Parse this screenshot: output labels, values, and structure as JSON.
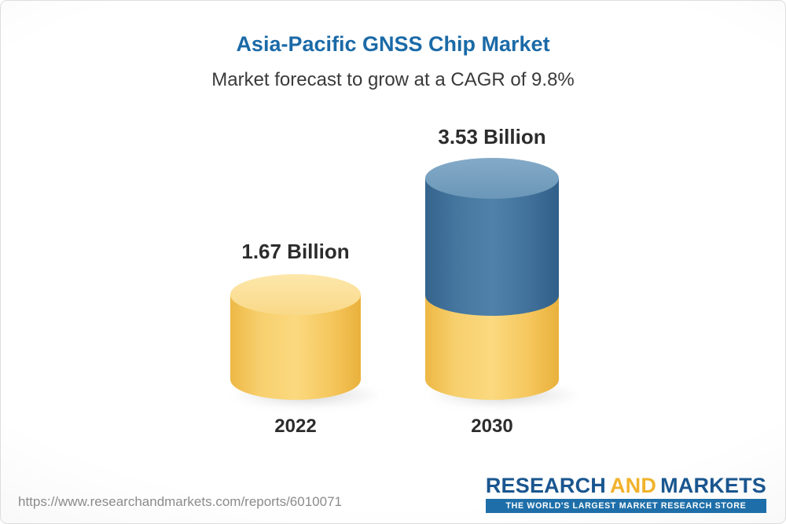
{
  "header": {
    "title": "Asia-Pacific GNSS Chip Market",
    "subtitle": "Market forecast to grow at a CAGR of 9.8%"
  },
  "chart_data": {
    "type": "bar",
    "title": "Asia-Pacific GNSS Chip Market",
    "subtitle": "Market forecast to grow at a CAGR of 9.8%",
    "cagr_percent": 9.8,
    "unit": "Billion",
    "categories": [
      "2022",
      "2030"
    ],
    "values": [
      1.67,
      3.53
    ],
    "value_labels": [
      "1.67 Billion",
      "3.53 Billion"
    ],
    "series_note": "2030 bar drawn stacked: bottom segment equals 2022 value (1.67), top blue segment is growth (1.86)",
    "colors": {
      "bar_2022": "#f6ca60",
      "bar_2030_bottom": "#f6ca60",
      "bar_2030_top": "#44759f",
      "title_text": "#1b6aa7",
      "label_text": "#2c2c2c"
    },
    "legend": "none",
    "grid": "off"
  },
  "footer": {
    "url": "https://www.researchandmarkets.com/reports/6010071"
  },
  "logo": {
    "research": "RESEARCH",
    "and": "AND",
    "markets": "MARKETS",
    "tagline": "THE WORLD'S LARGEST MARKET RESEARCH STORE"
  }
}
